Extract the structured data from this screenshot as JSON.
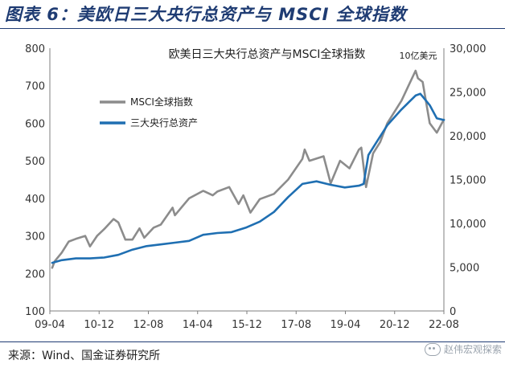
{
  "figure": {
    "title": "图表 6：美欧日三大央行总资产与 MSCI 全球指数",
    "source": "来源：Wind、国金证券研究所",
    "watermark": "赵伟宏观探索"
  },
  "chart_data": {
    "type": "line",
    "title": "欧美日三大央行总资产与MSCI全球指数",
    "right_unit": "10亿美元",
    "x_ticks": [
      "09-04",
      "10-12",
      "12-08",
      "14-04",
      "15-12",
      "17-08",
      "19-04",
      "20-12",
      "22-08"
    ],
    "x_range": [
      "2009-01",
      "2022-12"
    ],
    "y_left": {
      "range": [
        100,
        800
      ],
      "ticks": [
        "100",
        "200",
        "300",
        "400",
        "500",
        "600",
        "700",
        "800"
      ]
    },
    "y_right": {
      "range": [
        0,
        30000
      ],
      "ticks": [
        "0",
        "5,000",
        "10,000",
        "15,000",
        "20,000",
        "25,000",
        "30,000"
      ]
    },
    "legend_position": "top-left",
    "colors": {
      "msci": "#8c8c8c",
      "assets": "#1f6fb2"
    },
    "series": [
      {
        "name": "MSCI全球指数",
        "axis": "left",
        "points": [
          [
            "2009-02",
            215
          ],
          [
            "2009-03",
            232
          ],
          [
            "2009-06",
            255
          ],
          [
            "2009-09",
            285
          ],
          [
            "2009-12",
            292
          ],
          [
            "2010-04",
            300
          ],
          [
            "2010-06",
            272
          ],
          [
            "2010-09",
            300
          ],
          [
            "2010-12",
            318
          ],
          [
            "2011-04",
            345
          ],
          [
            "2011-06",
            336
          ],
          [
            "2011-09",
            290
          ],
          [
            "2011-12",
            290
          ],
          [
            "2012-03",
            320
          ],
          [
            "2012-05",
            295
          ],
          [
            "2012-09",
            322
          ],
          [
            "2012-12",
            330
          ],
          [
            "2013-05",
            375
          ],
          [
            "2013-06",
            355
          ],
          [
            "2013-12",
            400
          ],
          [
            "2014-06",
            420
          ],
          [
            "2014-10",
            408
          ],
          [
            "2014-12",
            418
          ],
          [
            "2015-05",
            430
          ],
          [
            "2015-09",
            385
          ],
          [
            "2015-11",
            408
          ],
          [
            "2016-02",
            362
          ],
          [
            "2016-06",
            398
          ],
          [
            "2016-12",
            412
          ],
          [
            "2017-06",
            450
          ],
          [
            "2017-12",
            505
          ],
          [
            "2018-01",
            530
          ],
          [
            "2018-03",
            500
          ],
          [
            "2018-09",
            512
          ],
          [
            "2018-12",
            440
          ],
          [
            "2019-04",
            500
          ],
          [
            "2019-08",
            480
          ],
          [
            "2019-12",
            530
          ],
          [
            "2020-01",
            535
          ],
          [
            "2020-03",
            430
          ],
          [
            "2020-06",
            520
          ],
          [
            "2020-09",
            550
          ],
          [
            "2020-12",
            600
          ],
          [
            "2021-06",
            660
          ],
          [
            "2021-12",
            740
          ],
          [
            "2022-01",
            720
          ],
          [
            "2022-03",
            710
          ],
          [
            "2022-06",
            600
          ],
          [
            "2022-09",
            575
          ],
          [
            "2022-12",
            610
          ]
        ]
      },
      {
        "name": "三大央行总资产",
        "axis": "right",
        "points": [
          [
            "2009-02",
            5500
          ],
          [
            "2009-06",
            5800
          ],
          [
            "2009-12",
            6000
          ],
          [
            "2010-06",
            6000
          ],
          [
            "2010-12",
            6100
          ],
          [
            "2011-06",
            6400
          ],
          [
            "2011-12",
            7000
          ],
          [
            "2012-06",
            7400
          ],
          [
            "2012-12",
            7600
          ],
          [
            "2013-06",
            7800
          ],
          [
            "2013-12",
            8000
          ],
          [
            "2014-06",
            8700
          ],
          [
            "2014-12",
            8900
          ],
          [
            "2015-06",
            9000
          ],
          [
            "2015-12",
            9500
          ],
          [
            "2016-06",
            10200
          ],
          [
            "2016-12",
            11300
          ],
          [
            "2017-06",
            13000
          ],
          [
            "2017-12",
            14500
          ],
          [
            "2018-06",
            14800
          ],
          [
            "2018-12",
            14400
          ],
          [
            "2019-06",
            14100
          ],
          [
            "2019-12",
            14300
          ],
          [
            "2020-02",
            14500
          ],
          [
            "2020-04",
            17800
          ],
          [
            "2020-08",
            19500
          ],
          [
            "2020-12",
            21200
          ],
          [
            "2021-06",
            23000
          ],
          [
            "2021-12",
            24600
          ],
          [
            "2022-02",
            24800
          ],
          [
            "2022-06",
            23500
          ],
          [
            "2022-09",
            22000
          ],
          [
            "2022-12",
            21800
          ]
        ]
      }
    ]
  }
}
